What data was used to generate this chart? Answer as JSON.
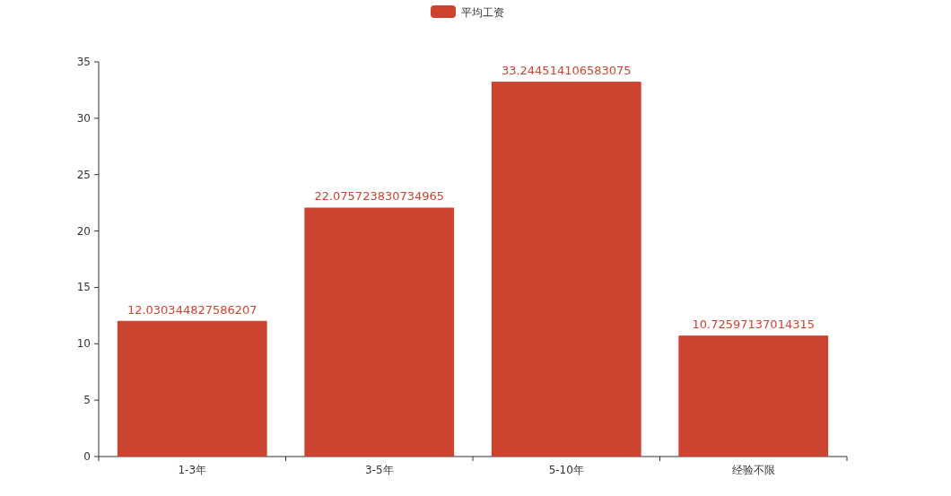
{
  "chart_data": {
    "type": "bar",
    "categories": [
      "1-3年",
      "3-5年",
      "5-10年",
      "经验不限"
    ],
    "series": [
      {
        "name": "平均工资",
        "color": "#cc4430",
        "values": [
          12.030344827586207,
          22.075723830734965,
          33.244514106583075,
          10.72597137014315
        ]
      }
    ],
    "ylim": [
      0,
      35
    ],
    "yticks": [
      0,
      5,
      10,
      15,
      20,
      25,
      30,
      35
    ],
    "data_labels": true,
    "legend": "top",
    "grid": false
  }
}
